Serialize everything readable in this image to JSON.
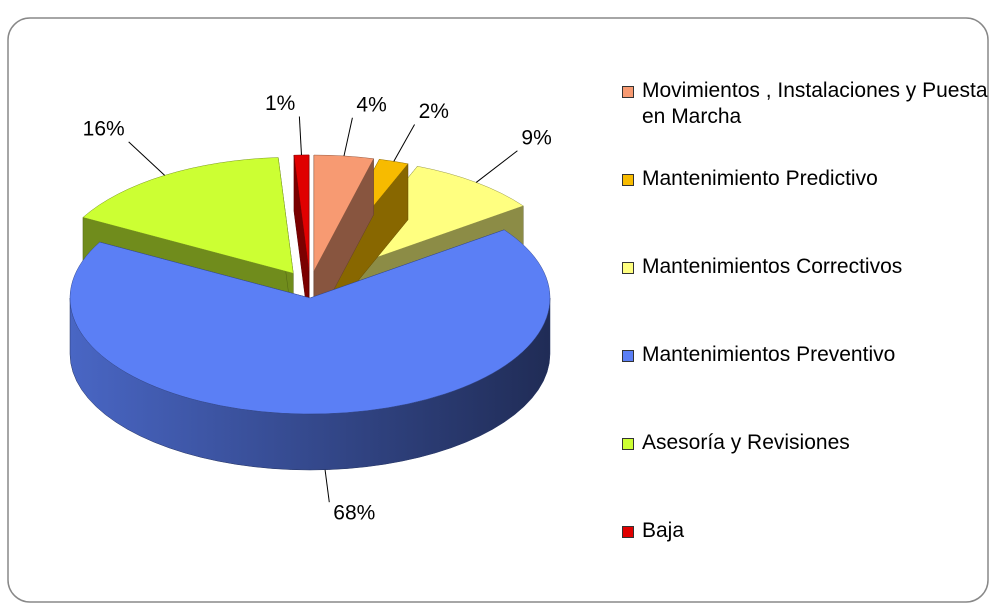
{
  "chart_data": {
    "type": "pie",
    "categories": [
      "Movimientos , Instalaciones y Puesta en Marcha",
      "Mantenimiento Predictivo",
      "Mantenimientos Correctivos",
      "Mantenimientos Preventivo",
      "Asesoría y Revisiones",
      "Baja"
    ],
    "values": [
      4,
      2,
      9,
      68,
      16,
      1
    ],
    "value_labels": [
      "4%",
      "2%",
      "9%",
      "68%",
      "16%",
      "1%"
    ],
    "colors": [
      "#f79a72",
      "#f7bb00",
      "#ffff80",
      "#5b7ff5",
      "#ccff33",
      "#e00000"
    ],
    "legend": "right"
  }
}
